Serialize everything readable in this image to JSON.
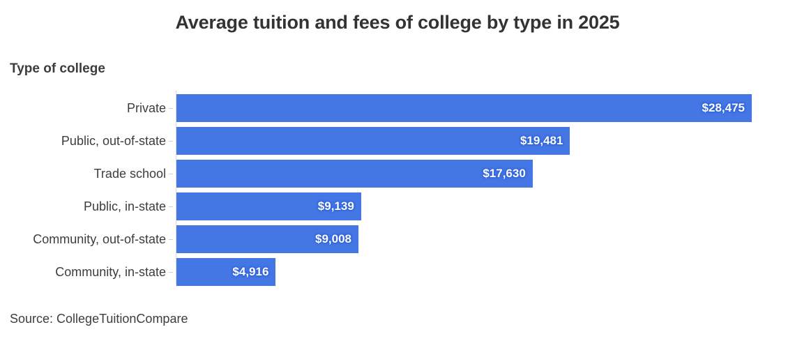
{
  "title": "Average tuition and fees of college by type in 2025",
  "axis_label": "Type of college",
  "source": "Source: CollegeTuitionCompare",
  "colors": {
    "bar": "#4476e4",
    "value_label_halo": "#2d5fd6",
    "title_text": "#333333",
    "label_text": "#3d3d3d",
    "axis_line": "#dcdcdc",
    "background": "#ffffff"
  },
  "chart_data": {
    "type": "bar",
    "orientation": "horizontal",
    "title": "Average tuition and fees of college by type in 2025",
    "ylabel": "Type of college",
    "xlabel": "",
    "categories": [
      "Private",
      "Public, out-of-state",
      "Trade school",
      "Public, in-state",
      "Community, out-of-state",
      "Community, in-state"
    ],
    "values": [
      28475,
      19481,
      17630,
      9139,
      9008,
      4916
    ],
    "value_labels": [
      "$28,475",
      "$19,481",
      "$17,630",
      "$9,139",
      "$9,008",
      "$4,916"
    ],
    "xlim": [
      0,
      28475
    ],
    "grid": false,
    "legend": false,
    "value_label_position": "inside-end",
    "source": "Source: CollegeTuitionCompare"
  }
}
